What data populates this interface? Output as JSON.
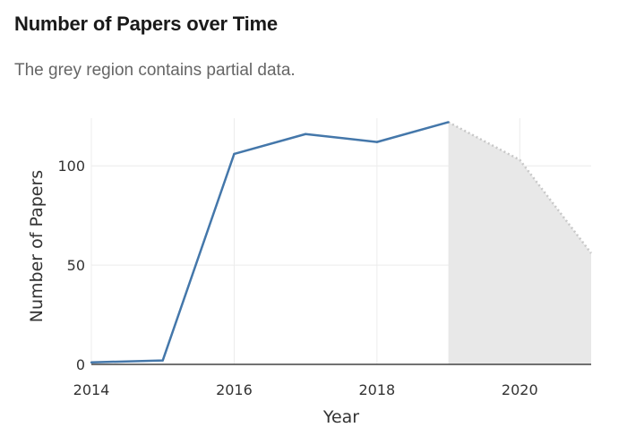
{
  "header": {
    "title": "Number of Papers over Time",
    "subtitle": "The grey region contains partial data."
  },
  "colors": {
    "line": "#4477aa",
    "partial_fill": "#e8e8e8",
    "partial_line": "#c8c8c8",
    "grid": "#ececec",
    "zero_line": "#444444"
  },
  "chart_data": {
    "type": "line",
    "xlabel": "Year",
    "ylabel": "Number of Papers",
    "xlim": [
      2014,
      2021
    ],
    "ylim": [
      0,
      124
    ],
    "x_ticks": [
      2014,
      2016,
      2018,
      2020
    ],
    "y_ticks": [
      0,
      50,
      100
    ],
    "grid": true,
    "series": [
      {
        "x": [
          2014,
          2015,
          2016,
          2017,
          2018,
          2019
        ],
        "y": [
          1,
          2,
          106,
          116,
          112,
          122
        ]
      }
    ],
    "partial_region": {
      "x": [
        2019,
        2020,
        2021
      ],
      "y": [
        122,
        103,
        56
      ]
    }
  }
}
